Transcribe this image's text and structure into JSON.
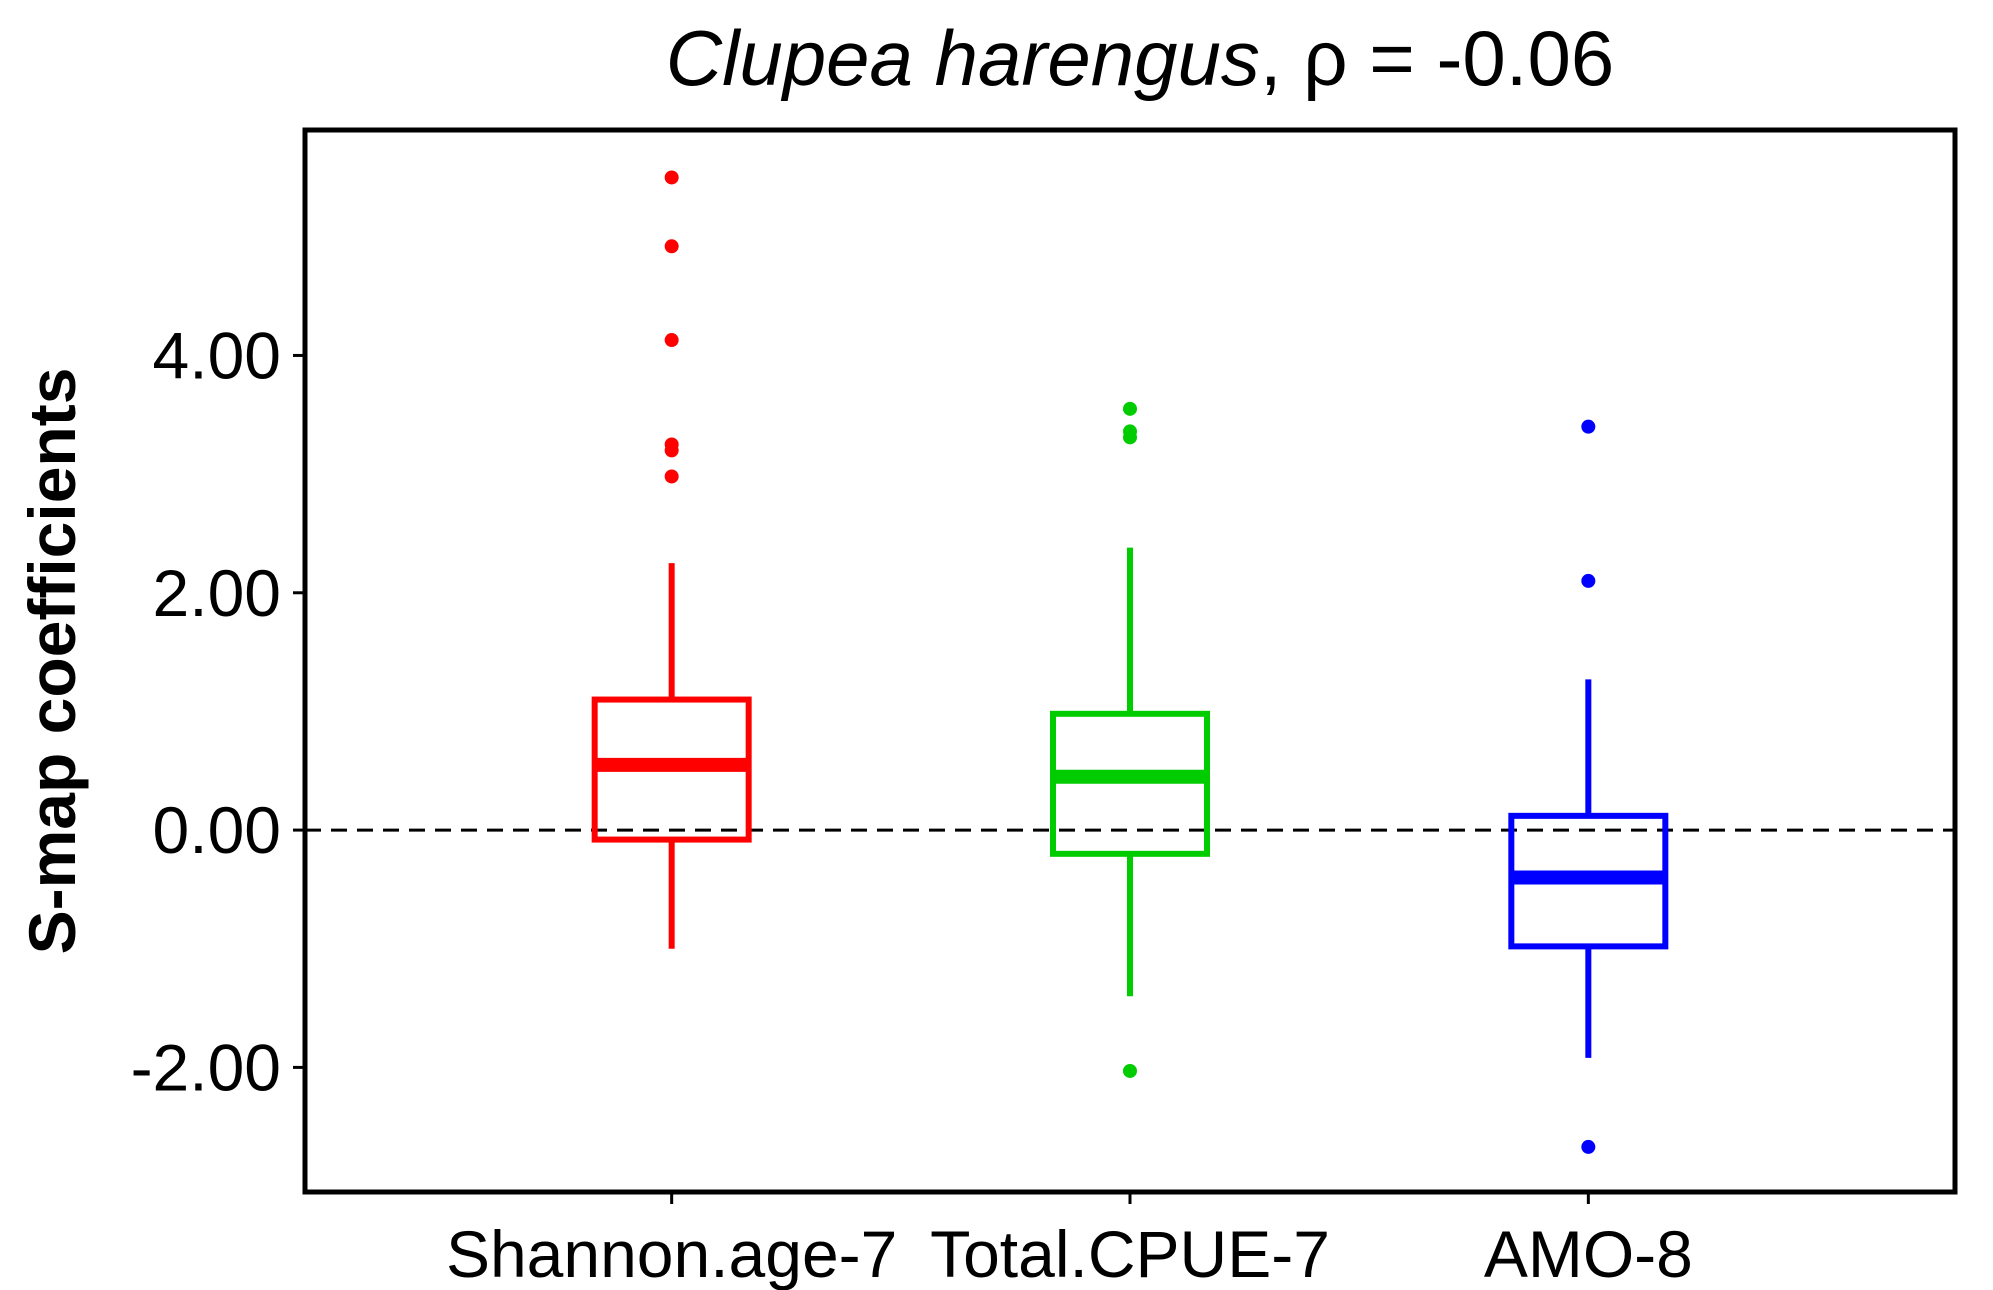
{
  "chart_data": {
    "type": "boxplot",
    "title": {
      "species": "Clupea harengus",
      "separator": ", ",
      "stat": "ρ = -0.06"
    },
    "xlabel": "",
    "ylabel": "S-map coefficients",
    "ylim": [
      -3.05,
      5.9
    ],
    "y_ticks": [
      -2,
      0,
      2,
      4
    ],
    "y_tick_labels": [
      "-2.00",
      "0.00",
      "2.00",
      "4.00"
    ],
    "reference_line": {
      "y": 0,
      "style": "dashed",
      "color": "#000000"
    },
    "grid": false,
    "legend": "none",
    "categories": [
      "Shannon.age-7",
      "Total.CPUE-7",
      "AMO-8"
    ],
    "boxes": [
      {
        "category": "Shannon.age-7",
        "color": "#ff0000",
        "whisker_low": -1.0,
        "q1": -0.08,
        "median": 0.55,
        "q3": 1.1,
        "whisker_high": 2.25,
        "outliers": [
          5.5,
          4.92,
          4.13,
          3.25,
          3.2,
          2.98
        ]
      },
      {
        "category": "Total.CPUE-7",
        "color": "#00cc00",
        "whisker_low": -1.4,
        "q1": -0.2,
        "median": 0.45,
        "q3": 0.98,
        "whisker_high": 2.38,
        "outliers": [
          3.55,
          3.36,
          3.31,
          -2.03
        ]
      },
      {
        "category": "AMO-8",
        "color": "#0000ff",
        "whisker_low": -1.92,
        "q1": -0.98,
        "median": -0.4,
        "q3": 0.12,
        "whisker_high": 1.27,
        "outliers": [
          3.4,
          2.1,
          -2.67
        ]
      }
    ]
  }
}
